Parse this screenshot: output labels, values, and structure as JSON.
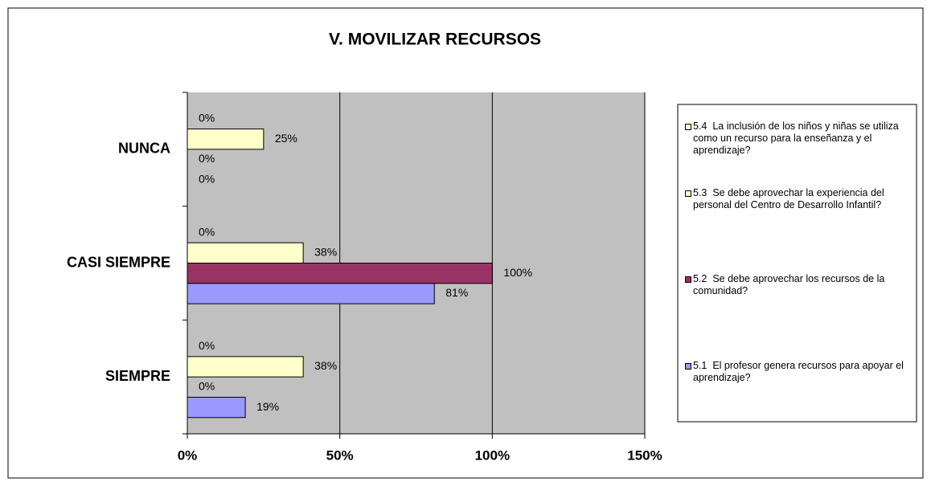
{
  "chart_data": {
    "type": "barh",
    "title": "V. MOVILIZAR RECURSOS",
    "categories": [
      "NUNCA",
      "CASI SIEMPRE",
      "SIEMPRE"
    ],
    "series": [
      {
        "name": "5.4  La inclusión de los niños y niñas se utiliza como un recurso para la enseñanza y el aprendizaje?",
        "color": "#ffffcc",
        "values": [
          0,
          0,
          0
        ],
        "value_labels": [
          "0%",
          "0%",
          "0%"
        ]
      },
      {
        "name": "5.3  Se debe aprovechar la experiencia del personal del Centro de Desarrollo Infantil?",
        "color": "#ffffcc",
        "values": [
          25,
          38,
          38
        ],
        "value_labels": [
          "25%",
          "38%",
          "38%"
        ]
      },
      {
        "name": "5.2  Se debe aprovechar los recursos de la comunidad?",
        "color": "#993366",
        "values": [
          0,
          100,
          0
        ],
        "value_labels": [
          "0%",
          "100%",
          "0%"
        ]
      },
      {
        "name": "5.1  El profesor genera recursos para apoyar el aprendizaje?",
        "color": "#9999ff",
        "values": [
          0,
          81,
          19
        ],
        "value_labels": [
          "0%",
          "81%",
          "19%"
        ]
      }
    ],
    "xlim": [
      0,
      150
    ],
    "xticks": [
      {
        "value": 0,
        "label": "0%"
      },
      {
        "value": 50,
        "label": "50%"
      },
      {
        "value": 100,
        "label": "100%"
      },
      {
        "value": 150,
        "label": "150%"
      }
    ],
    "grid": true,
    "plot_background": "#c0c0c0",
    "legend": "right"
  }
}
